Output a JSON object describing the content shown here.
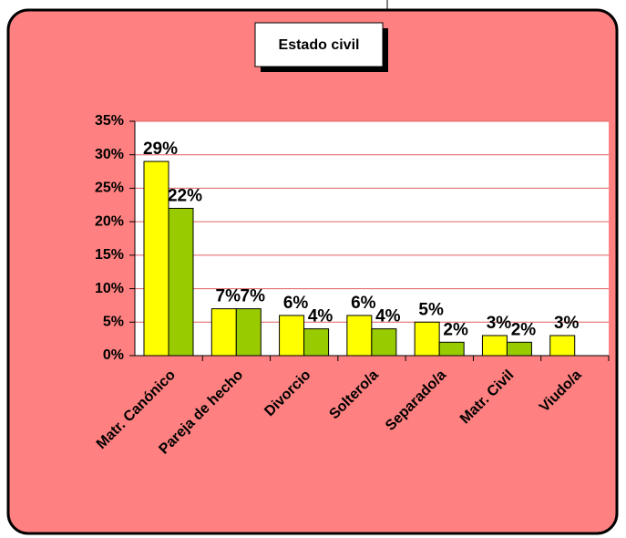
{
  "chart_data": {
    "type": "bar",
    "title": "Estado civil",
    "categories": [
      "Matr. Canónico",
      "Pareja de hecho",
      "Divorcio",
      "Soltero/a",
      "Separado/a",
      "Matr. Civil",
      "Viudo/a"
    ],
    "series": [
      {
        "color": "#ffff00",
        "values": [
          29,
          7,
          6,
          6,
          5,
          3,
          3
        ],
        "value_labels": [
          "29%",
          "7%",
          "6%",
          "6%",
          "5%",
          "3%",
          "3%"
        ]
      },
      {
        "color": "#99cc00",
        "values": [
          22,
          7,
          4,
          4,
          2,
          2,
          null
        ],
        "value_labels": [
          "22%",
          "7%",
          "4%",
          "4%",
          "2%",
          "2%",
          null
        ]
      }
    ],
    "ylim": [
      0,
      35
    ],
    "yticks": [
      {
        "value": 0,
        "label": "0%"
      },
      {
        "value": 5,
        "label": "5%"
      },
      {
        "value": 10,
        "label": "10%"
      },
      {
        "value": 15,
        "label": "15%"
      },
      {
        "value": 20,
        "label": "20%"
      },
      {
        "value": 25,
        "label": "25%"
      },
      {
        "value": 30,
        "label": "30%"
      },
      {
        "value": 35,
        "label": "35%"
      }
    ],
    "grid": true
  }
}
